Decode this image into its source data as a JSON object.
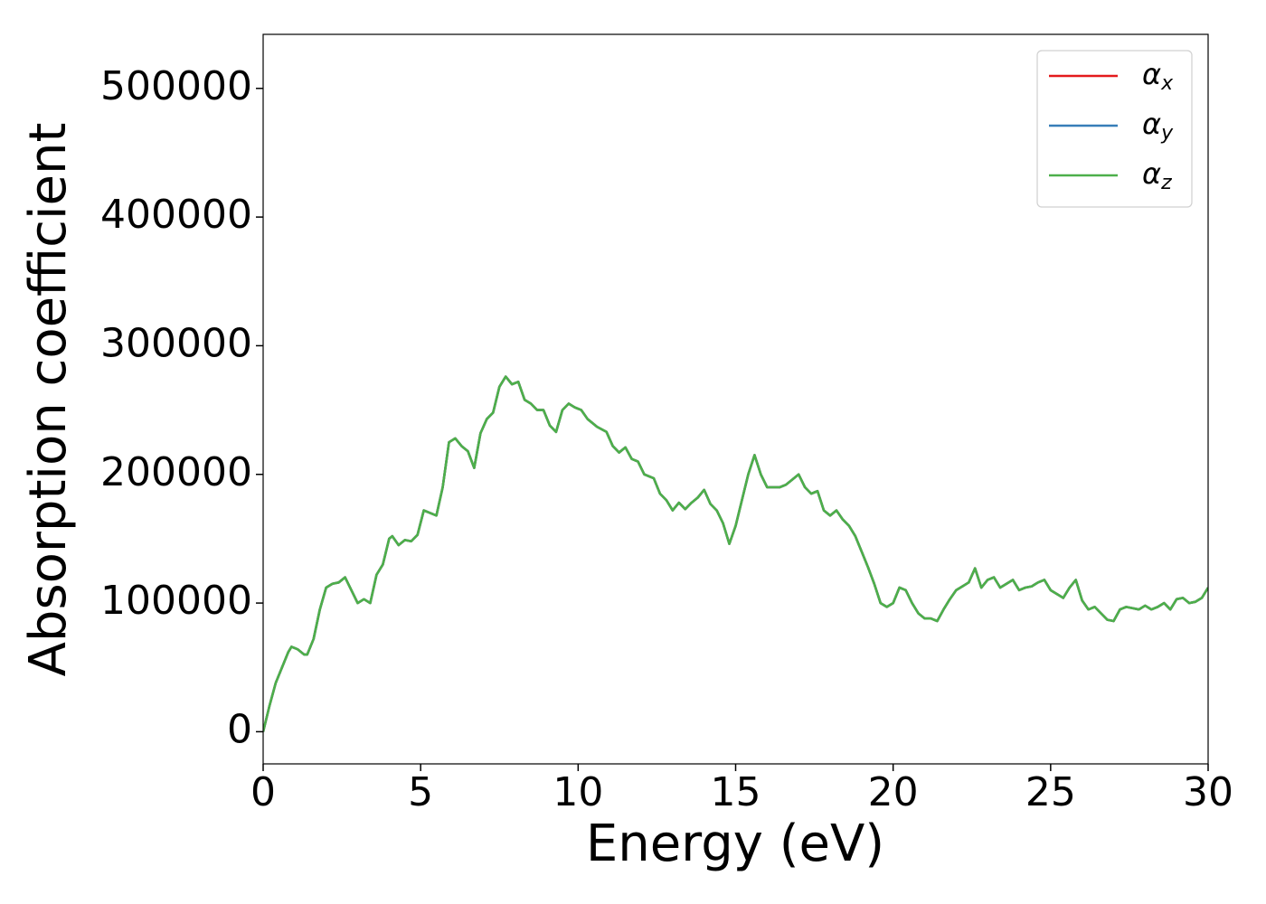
{
  "chart_data": {
    "type": "line",
    "xlabel": "Energy (eV)",
    "ylabel": "Absorption coefficient",
    "xlim": [
      0,
      30
    ],
    "xticks": [
      0,
      5,
      10,
      15,
      20,
      25,
      30
    ],
    "ylim": [
      -25000,
      542000
    ],
    "yticks": [
      0,
      100000,
      200000,
      300000,
      400000,
      500000
    ],
    "legend": "upper right",
    "grid": false,
    "x": [
      0,
      0.2,
      0.4,
      0.6,
      0.8,
      0.9,
      1.1,
      1.3,
      1.4,
      1.6,
      1.8,
      2.0,
      2.2,
      2.4,
      2.6,
      2.8,
      3.0,
      3.2,
      3.4,
      3.6,
      3.8,
      4.0,
      4.1,
      4.3,
      4.5,
      4.7,
      4.9,
      5.1,
      5.3,
      5.5,
      5.7,
      5.9,
      6.1,
      6.3,
      6.5,
      6.7,
      6.9,
      7.1,
      7.3,
      7.5,
      7.7,
      7.9,
      8.1,
      8.3,
      8.5,
      8.7,
      8.9,
      9.1,
      9.3,
      9.5,
      9.7,
      9.9,
      10.1,
      10.3,
      10.6,
      10.9,
      11.1,
      11.3,
      11.5,
      11.7,
      11.9,
      12.1,
      12.4,
      12.6,
      12.8,
      13.0,
      13.2,
      13.4,
      13.6,
      13.8,
      14.0,
      14.2,
      14.4,
      14.6,
      14.8,
      15.0,
      15.2,
      15.4,
      15.6,
      15.8,
      16.0,
      16.2,
      16.4,
      16.6,
      16.8,
      17.0,
      17.2,
      17.4,
      17.6,
      17.8,
      18.0,
      18.2,
      18.4,
      18.6,
      18.8,
      19.0,
      19.2,
      19.4,
      19.6,
      19.8,
      20.0,
      20.2,
      20.4,
      20.6,
      20.8,
      21.0,
      21.2,
      21.4,
      21.6,
      21.8,
      22.0,
      22.2,
      22.4,
      22.6,
      22.8,
      23.0,
      23.2,
      23.4,
      23.6,
      23.8,
      24.0,
      24.2,
      24.4,
      24.6,
      24.8,
      25.0,
      25.2,
      25.4,
      25.6,
      25.8,
      26.0,
      26.2,
      26.4,
      26.6,
      26.8,
      27.0,
      27.2,
      27.4,
      27.6,
      27.8,
      28.0,
      28.2,
      28.4,
      28.6,
      28.8,
      29.0,
      29.2,
      29.4,
      29.6,
      29.8,
      30.0
    ],
    "series": [
      {
        "name": "αx",
        "color": "#e41a1c",
        "values": [
          0,
          20000,
          38000,
          50000,
          62000,
          66000,
          64000,
          60000,
          60000,
          72000,
          95000,
          112000,
          115000,
          116000,
          120000,
          110000,
          100000,
          103000,
          100000,
          122000,
          130000,
          150000,
          152000,
          145000,
          149000,
          148000,
          153000,
          172000,
          170000,
          168000,
          190000,
          225000,
          228000,
          222000,
          218000,
          205000,
          232000,
          243000,
          248000,
          268000,
          276000,
          270000,
          272000,
          258000,
          255000,
          250000,
          250000,
          238000,
          233000,
          250000,
          255000,
          252000,
          250000,
          243000,
          237000,
          233000,
          222000,
          217000,
          221000,
          212000,
          210000,
          200000,
          197000,
          185000,
          180000,
          172000,
          178000,
          173000,
          178000,
          182000,
          188000,
          177000,
          172000,
          162000,
          146000,
          160000,
          180000,
          200000,
          215000,
          200000,
          190000,
          190000,
          190000,
          192000,
          196000,
          200000,
          190000,
          185000,
          187000,
          172000,
          168000,
          172000,
          165000,
          160000,
          152000,
          140000,
          128000,
          115000,
          100000,
          97000,
          100000,
          112000,
          110000,
          100000,
          92000,
          88000,
          88000,
          86000,
          95000,
          103000,
          110000,
          113000,
          116000,
          127000,
          112000,
          118000,
          120000,
          112000,
          115000,
          118000,
          110000,
          112000,
          113000,
          116000,
          118000,
          110000,
          107000,
          104000,
          112000,
          118000,
          102000,
          95000,
          97000,
          92000,
          87000,
          86000,
          95000,
          97000,
          96000,
          95000,
          98000,
          95000,
          97000,
          100000,
          95000,
          103000,
          104000,
          100000,
          101000,
          104000,
          112000
        ]
      },
      {
        "name": "αy",
        "color": "#377eb8",
        "values": [
          0,
          20000,
          38000,
          50000,
          62000,
          66000,
          64000,
          60000,
          60000,
          72000,
          95000,
          112000,
          115000,
          116000,
          120000,
          110000,
          100000,
          103000,
          100000,
          122000,
          130000,
          150000,
          152000,
          145000,
          149000,
          148000,
          153000,
          172000,
          170000,
          168000,
          190000,
          225000,
          228000,
          222000,
          218000,
          205000,
          232000,
          243000,
          248000,
          268000,
          276000,
          270000,
          272000,
          258000,
          255000,
          250000,
          250000,
          238000,
          233000,
          250000,
          255000,
          252000,
          250000,
          243000,
          237000,
          233000,
          222000,
          217000,
          221000,
          212000,
          210000,
          200000,
          197000,
          185000,
          180000,
          172000,
          178000,
          173000,
          178000,
          182000,
          188000,
          177000,
          172000,
          162000,
          146000,
          160000,
          180000,
          200000,
          215000,
          200000,
          190000,
          190000,
          190000,
          192000,
          196000,
          200000,
          190000,
          185000,
          187000,
          172000,
          168000,
          172000,
          165000,
          160000,
          152000,
          140000,
          128000,
          115000,
          100000,
          97000,
          100000,
          112000,
          110000,
          100000,
          92000,
          88000,
          88000,
          86000,
          95000,
          103000,
          110000,
          113000,
          116000,
          127000,
          112000,
          118000,
          120000,
          112000,
          115000,
          118000,
          110000,
          112000,
          113000,
          116000,
          118000,
          110000,
          107000,
          104000,
          112000,
          118000,
          102000,
          95000,
          97000,
          92000,
          87000,
          86000,
          95000,
          97000,
          96000,
          95000,
          98000,
          95000,
          97000,
          100000,
          95000,
          103000,
          104000,
          100000,
          101000,
          104000,
          112000
        ]
      },
      {
        "name": "αz",
        "color": "#4daf4a",
        "values": [
          0,
          20000,
          38000,
          50000,
          62000,
          66000,
          64000,
          60000,
          60000,
          72000,
          95000,
          112000,
          115000,
          116000,
          120000,
          110000,
          100000,
          103000,
          100000,
          122000,
          130000,
          150000,
          152000,
          145000,
          149000,
          148000,
          153000,
          172000,
          170000,
          168000,
          190000,
          225000,
          228000,
          222000,
          218000,
          205000,
          232000,
          243000,
          248000,
          268000,
          276000,
          270000,
          272000,
          258000,
          255000,
          250000,
          250000,
          238000,
          233000,
          250000,
          255000,
          252000,
          250000,
          243000,
          237000,
          233000,
          222000,
          217000,
          221000,
          212000,
          210000,
          200000,
          197000,
          185000,
          180000,
          172000,
          178000,
          173000,
          178000,
          182000,
          188000,
          177000,
          172000,
          162000,
          146000,
          160000,
          180000,
          200000,
          215000,
          200000,
          190000,
          190000,
          190000,
          192000,
          196000,
          200000,
          190000,
          185000,
          187000,
          172000,
          168000,
          172000,
          165000,
          160000,
          152000,
          140000,
          128000,
          115000,
          100000,
          97000,
          100000,
          112000,
          110000,
          100000,
          92000,
          88000,
          88000,
          86000,
          95000,
          103000,
          110000,
          113000,
          116000,
          127000,
          112000,
          118000,
          120000,
          112000,
          115000,
          118000,
          110000,
          112000,
          113000,
          116000,
          118000,
          110000,
          107000,
          104000,
          112000,
          118000,
          102000,
          95000,
          97000,
          92000,
          87000,
          86000,
          95000,
          97000,
          96000,
          95000,
          98000,
          95000,
          97000,
          100000,
          95000,
          103000,
          104000,
          100000,
          101000,
          104000,
          112000
        ]
      }
    ]
  }
}
